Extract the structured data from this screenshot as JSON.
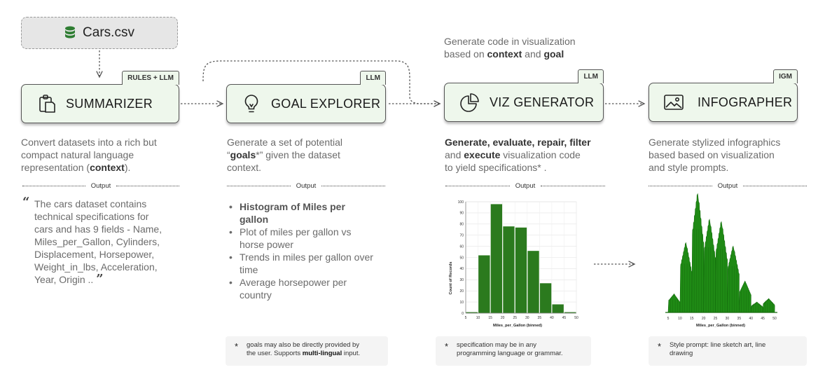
{
  "colors": {
    "card_fill": "#eef7ec",
    "bar_green": "#2b7a1e",
    "ink": "#1a1a1a"
  },
  "dataset": {
    "label": "Cars.csv",
    "icon": "database-icon"
  },
  "modules": [
    {
      "title": "SUMMARIZER",
      "tag": "RULES + LLM",
      "icon": "clipboard-icon",
      "desc": [
        "Convert datasets into a rich but",
        "compact natural language",
        "representation (",
        "context",
        ")."
      ]
    },
    {
      "title": "GOAL EXPLORER",
      "tag": "LLM",
      "icon": "lightbulb-icon",
      "desc": [
        "Generate a set of potential",
        "“",
        "goals",
        "*” given the dataset",
        "context."
      ]
    },
    {
      "title": "VIZ GENERATOR",
      "tag": "LLM",
      "icon": "pie-chart-icon",
      "desc": [
        "Generate, evaluate, repair, filter",
        "and ",
        "execute",
        " visualization code",
        "to yield specifications* ."
      ]
    },
    {
      "title": "INFOGRAPHER",
      "tag": "IGM",
      "icon": "image-icon",
      "desc": [
        "Generate stylized infographics",
        "based based on visualization",
        "and style prompts."
      ]
    }
  ],
  "output_label": "Output",
  "summary_quote": [
    "The cars dataset contains",
    "technical specifications for",
    "cars and has 9 fields - Name,",
    "Miles_per_Gallon, Cylinders,",
    "Displacement, Horsepower,",
    "Weight_in_lbs, Acceleration,",
    "Year, Origin .."
  ],
  "goals": [
    "Histogram of Miles per gallon",
    "Plot of miles per gallon vs horse power",
    "Trends in miles per gallon over time",
    "Average horsepower per country"
  ],
  "viz_caption": [
    "Generate code in visualization",
    "based on ",
    "context",
    " and ",
    "goal"
  ],
  "notes": {
    "goal": [
      "goals may also be directly provided by",
      "the user. Supports ",
      "multi-lingual",
      " input."
    ],
    "viz": [
      "specification may be in any",
      "programming language or grammar."
    ],
    "info": [
      "Style prompt: line sketch art, line",
      "drawing"
    ],
    "star": "*"
  },
  "chart_data": [
    {
      "type": "bar",
      "x": [
        5,
        10,
        15,
        20,
        25,
        30,
        35,
        40,
        45
      ],
      "x_bin_width": 5,
      "values": [
        1,
        52,
        98,
        78,
        77,
        56,
        27,
        8,
        1
      ],
      "xlabel": "Miles_per_Gallon (binned)",
      "ylabel": "Count of Records",
      "xticks": [
        "5",
        "10",
        "15",
        "20",
        "25",
        "30",
        "35",
        "40",
        "45",
        "50"
      ],
      "yticks": [
        "0",
        "10",
        "20",
        "30",
        "40",
        "50",
        "60",
        "70",
        "80",
        "90",
        "100"
      ],
      "ylim": [
        0,
        100
      ],
      "grid": true
    },
    {
      "type": "bar",
      "style": "sketch",
      "xlabel": "Miles_per_Gallon (binned)",
      "xticks": [
        "5",
        "10",
        "15",
        "20",
        "25",
        "30",
        "35",
        "40",
        "45",
        "50"
      ]
    }
  ]
}
